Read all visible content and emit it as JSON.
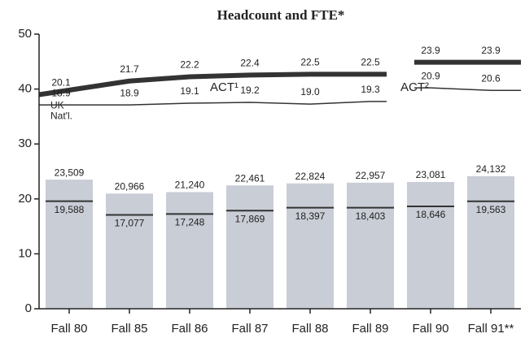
{
  "chart_data": {
    "type": "bar",
    "title": "Headcount and FTE*",
    "categories": [
      "Fall 80",
      "Fall 85",
      "Fall 86",
      "Fall 87",
      "Fall 88",
      "Fall 89",
      "Fall 90",
      "Fall 91**"
    ],
    "ylim": [
      0,
      50
    ],
    "yticks": [
      0,
      10,
      20,
      30,
      40,
      50
    ],
    "y2lim": [
      -5,
      27.2
    ],
    "series": [
      {
        "name": "Headcount",
        "color": "#c9cdd6",
        "values": [
          23.509,
          20.966,
          21.24,
          22.461,
          22.824,
          22.957,
          23.081,
          24.132
        ],
        "value_labels": [
          "23,509",
          "20,966",
          "21,240",
          "22,461",
          "22,824",
          "22,957",
          "23,081",
          "24,132"
        ]
      },
      {
        "name": "FTE",
        "color": "#333333",
        "values": [
          19.588,
          17.077,
          17.248,
          17.869,
          18.397,
          18.403,
          18.646,
          19.563
        ],
        "value_labels": [
          "19,588",
          "17,077",
          "17,248",
          "17,869",
          "18,397",
          "18,403",
          "18,646",
          "19,563"
        ]
      },
      {
        "name": "UK",
        "type": "line",
        "axis": "y2",
        "color": "#333333",
        "values": [
          20.1,
          21.7,
          22.2,
          22.4,
          22.5,
          22.5,
          23.9,
          23.9
        ]
      },
      {
        "name": "Nat'l.",
        "type": "line",
        "axis": "y2",
        "color": "#333333",
        "values": [
          18.9,
          18.9,
          19.1,
          19.2,
          19.0,
          19.3,
          20.9,
          20.6
        ],
        "value_labels": [
          "18.9",
          "18.9",
          "19.1",
          "19.2",
          "19.0",
          "19.3",
          "20.9",
          "20.6"
        ]
      }
    ],
    "break_after": 5,
    "annotations": [
      "ACT¹",
      "ACT²"
    ]
  }
}
